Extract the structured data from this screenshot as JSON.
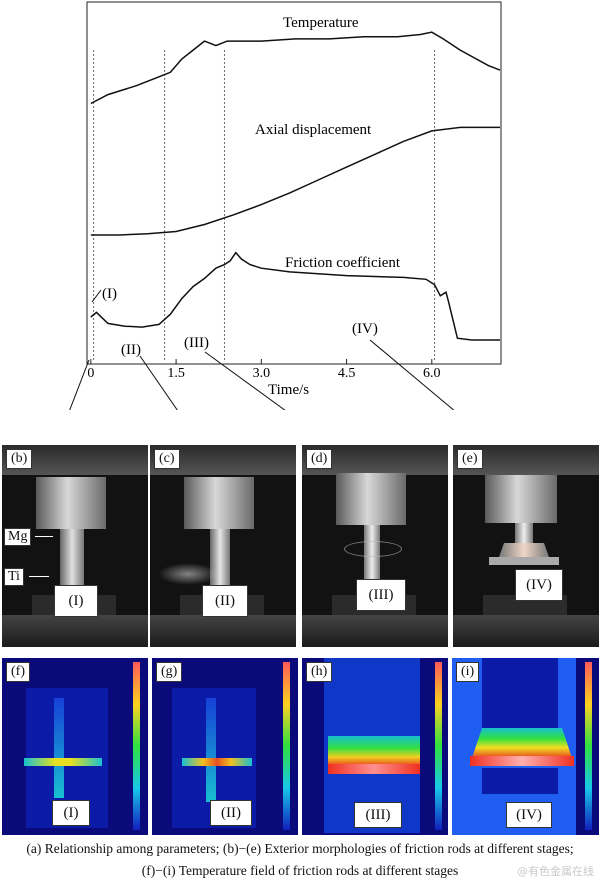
{
  "chart_data": {
    "type": "line",
    "xlabel": "Time/s",
    "x_ticks": [
      "0",
      "1.5",
      "3.0",
      "4.5",
      "6.0"
    ],
    "xlim": [
      -0.05,
      7.2
    ],
    "stage_markers": [
      0.05,
      1.3,
      2.35,
      6.05
    ],
    "series": [
      {
        "name": "Temperature",
        "x": [
          0,
          0.3,
          0.8,
          1.2,
          1.4,
          1.6,
          1.8,
          2.0,
          2.2,
          2.4,
          3.0,
          3.6,
          4.2,
          4.8,
          5.4,
          5.8,
          6.0,
          6.2,
          6.5,
          7.0,
          7.2
        ],
        "y": [
          0.72,
          0.76,
          0.8,
          0.84,
          0.86,
          0.92,
          0.96,
          1.0,
          0.98,
          1.0,
          1.0,
          1.01,
          1.01,
          1.02,
          1.02,
          1.03,
          1.04,
          1.01,
          0.96,
          0.89,
          0.87
        ]
      },
      {
        "name": "Axial displacement",
        "x": [
          0,
          0.5,
          1.0,
          1.5,
          2.0,
          2.5,
          3.0,
          3.5,
          4.0,
          4.5,
          5.0,
          5.5,
          6.0,
          6.5,
          7.2
        ],
        "y": [
          0.0,
          0.0,
          0.01,
          0.03,
          0.09,
          0.17,
          0.26,
          0.36,
          0.47,
          0.58,
          0.69,
          0.8,
          0.89,
          0.92,
          0.92
        ]
      },
      {
        "name": "Friction coefficient",
        "x": [
          0,
          0.1,
          0.3,
          0.6,
          0.9,
          1.2,
          1.4,
          1.6,
          1.8,
          2.0,
          2.2,
          2.35,
          2.45,
          2.55,
          2.65,
          2.8,
          3.0,
          3.5,
          4.0,
          4.5,
          5.0,
          5.5,
          5.9,
          6.05,
          6.15,
          6.25,
          6.3,
          6.45,
          6.7,
          7.2
        ],
        "y": [
          0.25,
          0.3,
          0.18,
          0.15,
          0.14,
          0.17,
          0.28,
          0.45,
          0.58,
          0.67,
          0.78,
          0.82,
          0.86,
          0.95,
          0.88,
          0.82,
          0.78,
          0.74,
          0.72,
          0.7,
          0.69,
          0.68,
          0.66,
          0.6,
          0.48,
          0.52,
          0.4,
          0.02,
          0.0,
          0.0
        ]
      }
    ],
    "curve_labels": [
      "Temperature",
      "Axial displacement",
      "Friction coefficient"
    ],
    "stage_labels": [
      "(I)",
      "(II)",
      "(III)",
      "(IV)"
    ]
  },
  "photos": [
    {
      "tag": "(b)",
      "stage": "(I)",
      "mg_label": "Mg",
      "ti_label": "Ti"
    },
    {
      "tag": "(c)",
      "stage": "(II)"
    },
    {
      "tag": "(d)",
      "stage": "(III)"
    },
    {
      "tag": "(e)",
      "stage": "(IV)"
    }
  ],
  "thermals": [
    {
      "tag": "(f)",
      "stage": "(I)"
    },
    {
      "tag": "(g)",
      "stage": "(II)"
    },
    {
      "tag": "(h)",
      "stage": "(III)"
    },
    {
      "tag": "(i)",
      "stage": "(IV)"
    }
  ],
  "caption": {
    "line1": "(a) Relationship among parameters; (b)−(e) Exterior morphologies of friction rods at different stages;",
    "line2": "(f)−(i) Temperature field of friction rods at different stages"
  },
  "watermark": "@有色金属在线"
}
